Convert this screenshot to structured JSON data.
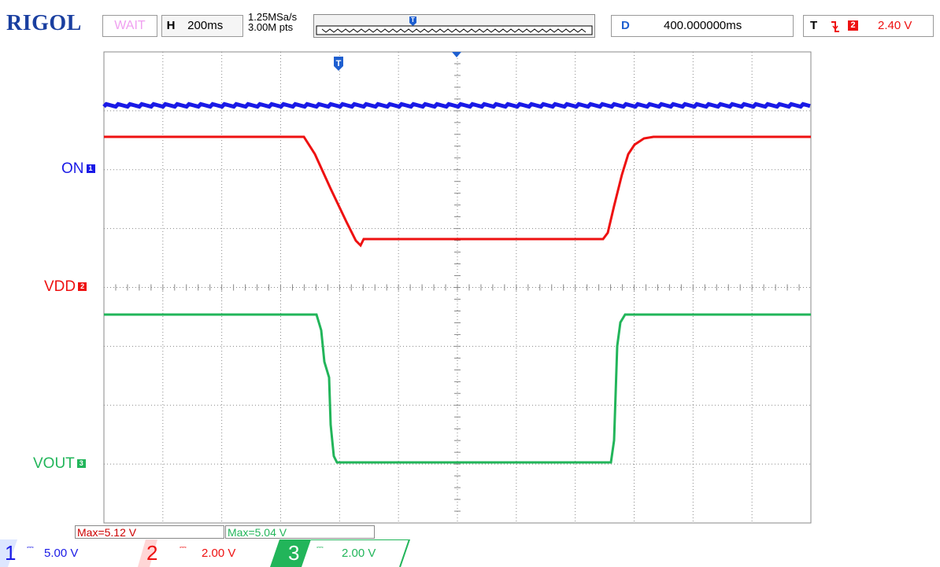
{
  "header": {
    "brand": "RIGOL",
    "status": "WAIT",
    "timebase_key": "H",
    "timebase_value": "200ms",
    "sample_rate": "1.25MSa/s",
    "memory_depth": "3.00M pts",
    "delay_key": "D",
    "delay_value": "400.000000ms",
    "trigger_key": "T",
    "trigger_slope_icon": "falling-edge-icon",
    "trigger_source": "2",
    "trigger_level": "2.40 V"
  },
  "channels": {
    "ch1": {
      "label": "ON",
      "marker": "1",
      "color": "#1a1ae6",
      "number": "1",
      "scale": "5.00 V",
      "coupling": "DC"
    },
    "ch2": {
      "label": "VDD",
      "marker": "2",
      "color": "#ee1111",
      "number": "2",
      "scale": "2.00 V",
      "coupling": "DC"
    },
    "ch3": {
      "label": "VOUT",
      "marker": "3",
      "color": "#22b55a",
      "number": "3",
      "scale": "2.00 V",
      "coupling": "DC"
    }
  },
  "measurements": {
    "max1": "Max=5.12 V",
    "max2": "Max=5.04 V"
  },
  "markers": {
    "trigger_position_icon": "T",
    "center_marker_icon": "down-triangle-icon"
  },
  "colors": {
    "grid": "#888888",
    "brand": "#1a3fa0",
    "accent_blue": "#1e5fd0"
  }
}
